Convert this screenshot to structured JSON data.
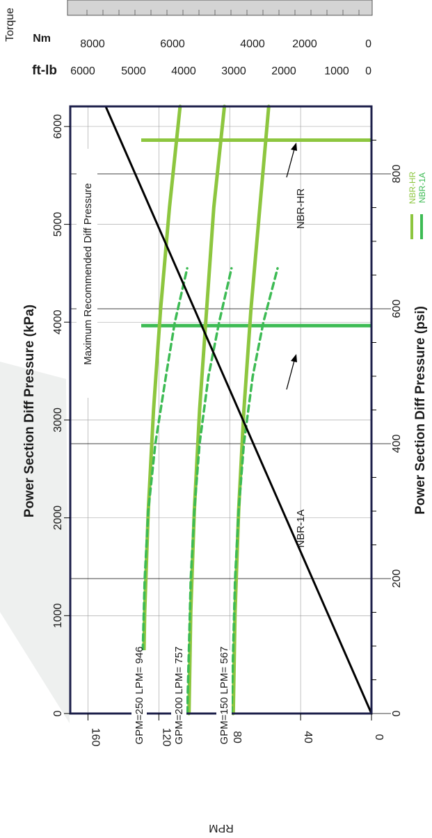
{
  "chart_data": {
    "type": "line",
    "orientation": "rotated-90-clockwise",
    "x_axis": {
      "label_kpa": "Power Section Diff Pressure (kPa)",
      "label_psi": "Power Section Diff Pressure (psi)",
      "kpa_ticks": [
        "0",
        "1000",
        "2000",
        "3000",
        "4000",
        "5000",
        "6000"
      ],
      "psi_ticks": [
        "0",
        "200",
        "400",
        "600",
        "800"
      ],
      "range_psi": [
        0,
        900
      ]
    },
    "y_axis": {
      "label": "RPM",
      "ticks": [
        "0",
        "40",
        "80",
        "120",
        "160"
      ],
      "range": [
        0,
        170
      ]
    },
    "torque_axis": {
      "title": "Torque",
      "nm_label": "Nm",
      "ftlb_label": "ft-lb",
      "nm_ticks": [
        "8000",
        "6000",
        "4000",
        "2000",
        "0"
      ],
      "ftlb_ticks": [
        "6000",
        "5000",
        "4000",
        "3000",
        "2000",
        "1000",
        "0"
      ]
    },
    "series": [
      {
        "name": "GPM=250 LPM= 946",
        "kind": "flow",
        "color": "#8dc63f",
        "x_psi": [
          0,
          150,
          300,
          450,
          600,
          750,
          900
        ],
        "rpm": [
          129,
          128,
          126,
          123,
          119,
          114,
          108
        ]
      },
      {
        "name": "GPM=200 LPM= 757",
        "kind": "flow",
        "color": "#8dc63f",
        "x_psi": [
          0,
          150,
          300,
          450,
          600,
          750,
          900
        ],
        "rpm": [
          103,
          102,
          100,
          97,
          93,
          89,
          83
        ]
      },
      {
        "name": "GPM=150 LPM= 567",
        "kind": "flow",
        "color": "#8dc63f",
        "x_psi": [
          0,
          150,
          300,
          450,
          600,
          750,
          900
        ],
        "rpm": [
          78,
          77,
          75,
          72,
          68,
          63,
          58
        ]
      },
      {
        "kind": "dashed",
        "color": "#3dbb54",
        "x_psi": [
          0,
          100,
          200,
          300,
          400,
          500,
          580,
          660
        ],
        "rpm": [
          130,
          129,
          128,
          126,
          122,
          116,
          111,
          104
        ]
      },
      {
        "kind": "dashed",
        "color": "#3dbb54",
        "x_psi": [
          0,
          100,
          200,
          300,
          400,
          500,
          580,
          660
        ],
        "rpm": [
          104,
          103,
          102,
          100,
          97,
          92,
          86,
          79
        ]
      },
      {
        "kind": "dashed",
        "color": "#3dbb54",
        "x_psi": [
          0,
          100,
          200,
          300,
          400,
          500,
          580,
          660
        ],
        "rpm": [
          79,
          78,
          77,
          75,
          72,
          67,
          61,
          53
        ]
      }
    ],
    "max_diff_line": {
      "label": "Maximum Recommended Diff Pressure",
      "color": "#000000",
      "x_psi": [
        0,
        900
      ],
      "rpm": [
        0,
        150
      ]
    },
    "limits": [
      {
        "name": "NBR-HR",
        "x_psi": 850,
        "color": "#8dc63f"
      },
      {
        "name": "NBR-1A",
        "x_psi": 575,
        "color": "#3dbb54"
      }
    ],
    "legend": [
      {
        "label": "NBR-HR",
        "color": "#8dc63f"
      },
      {
        "label": "NBR-1A",
        "color": "#3dbb54"
      }
    ]
  }
}
